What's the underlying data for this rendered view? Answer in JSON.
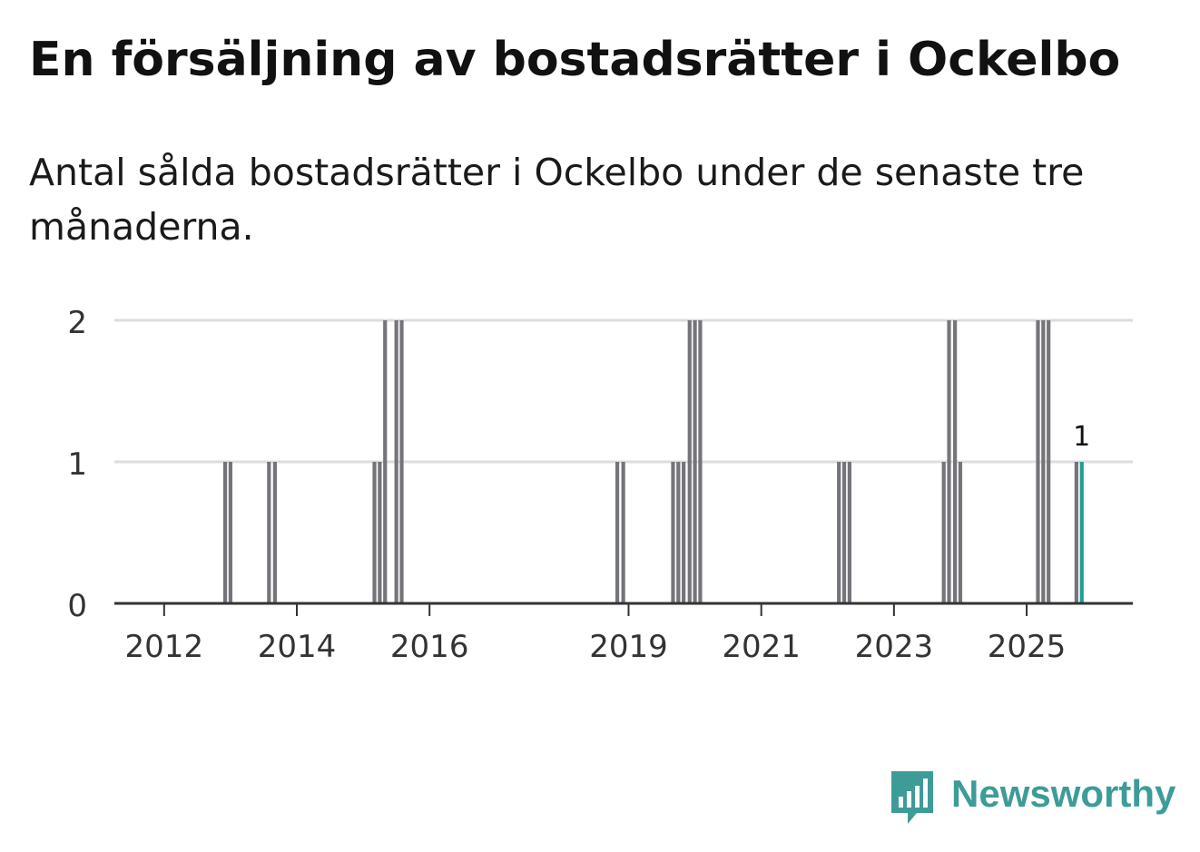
{
  "title": "En försäljning av bostadsrätter i Ockelbo",
  "subtitle": "Antal sålda bostadsrätter i Ockelbo under de senaste tre månaderna.",
  "brand": {
    "name": "Newsworthy",
    "icon": "newsworthy-logo-icon",
    "color": "#3d9c98"
  },
  "colors": {
    "bar": "#75747a",
    "highlight": "#1f9f95",
    "grid": "#dddddd",
    "axis": "#333333",
    "text": "#333333"
  },
  "chart_data": {
    "type": "bar",
    "title": "En försäljning av bostadsrätter i Ockelbo",
    "xlabel": "",
    "ylabel": "",
    "xlim": [
      2011.25,
      2026.6
    ],
    "ylim": [
      0,
      2
    ],
    "yticks": [
      0,
      1,
      2
    ],
    "xticks": [
      2012,
      2014,
      2016,
      2019,
      2021,
      2023,
      2025
    ],
    "annotation": {
      "x": 2025.83,
      "value": 1,
      "label": "1"
    },
    "series": [
      {
        "name": "Antal sålda bostadsrätter",
        "x": [
          2012.92,
          2013.0,
          2013.58,
          2013.67,
          2015.17,
          2015.25,
          2015.33,
          2015.5,
          2015.58,
          2018.83,
          2018.92,
          2019.67,
          2019.75,
          2019.83,
          2019.92,
          2020.0,
          2020.08,
          2022.17,
          2022.25,
          2022.33,
          2023.75,
          2023.83,
          2023.92,
          2024.0,
          2025.17,
          2025.25,
          2025.33,
          2025.75,
          2025.83
        ],
        "values": [
          1,
          1,
          1,
          1,
          1,
          1,
          2,
          2,
          2,
          1,
          1,
          1,
          1,
          1,
          2,
          2,
          2,
          1,
          1,
          1,
          1,
          2,
          2,
          1,
          2,
          2,
          2,
          1,
          1
        ],
        "highlight_index": 28
      }
    ]
  }
}
